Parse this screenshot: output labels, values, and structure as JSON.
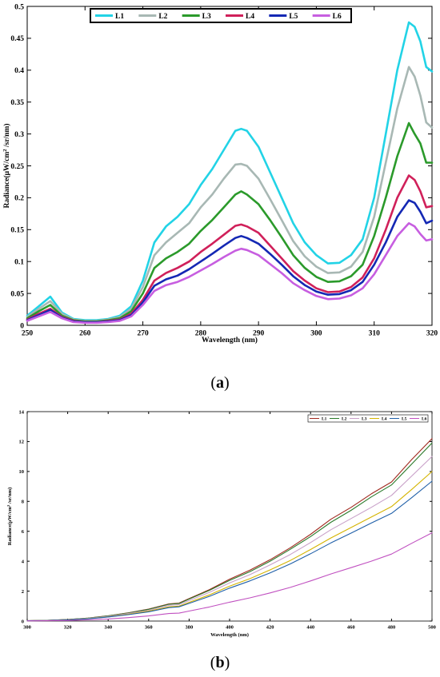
{
  "captions": {
    "a_letter": "a",
    "b_letter": "b"
  },
  "chart_data": [
    {
      "type": "line",
      "id": "a",
      "xlabel": "Wavelength (nm)",
      "ylabel_main": "Radiance(μW/cm",
      "ylabel_sup": "2",
      "ylabel_tail": " /sr/nm)",
      "xlim": [
        250,
        320
      ],
      "ylim": [
        0,
        0.5
      ],
      "xticks": [
        250,
        260,
        270,
        280,
        290,
        300,
        310,
        320
      ],
      "yticks": [
        0,
        0.05,
        0.1,
        0.15,
        0.2,
        0.25,
        0.3,
        0.35,
        0.4,
        0.45,
        0.5
      ],
      "ytick_labels": [
        "0",
        "0.05",
        "0.1",
        "0.15",
        "0.2",
        "0.25",
        "0.3",
        "0.35",
        "0.4",
        "0.45",
        "0.5"
      ],
      "legend_position": "top-center",
      "x": [
        250,
        252,
        254,
        256,
        258,
        260,
        262,
        264,
        266,
        268,
        270,
        272,
        274,
        276,
        278,
        280,
        282,
        284,
        286,
        287,
        288,
        290,
        292,
        294,
        296,
        298,
        300,
        302,
        304,
        306,
        308,
        310,
        312,
        314,
        316,
        317,
        318,
        319,
        320
      ],
      "series": [
        {
          "name": "L1",
          "color": "#22d3e6",
          "values": [
            0.015,
            0.03,
            0.045,
            0.02,
            0.01,
            0.008,
            0.008,
            0.01,
            0.015,
            0.03,
            0.07,
            0.13,
            0.155,
            0.17,
            0.19,
            0.22,
            0.245,
            0.275,
            0.305,
            0.308,
            0.305,
            0.28,
            0.24,
            0.2,
            0.16,
            0.13,
            0.11,
            0.097,
            0.098,
            0.11,
            0.135,
            0.2,
            0.3,
            0.4,
            0.475,
            0.468,
            0.445,
            0.405,
            0.398
          ]
        },
        {
          "name": "L2",
          "color": "#a8b8b4",
          "values": [
            0.013,
            0.026,
            0.038,
            0.018,
            0.009,
            0.007,
            0.007,
            0.009,
            0.013,
            0.026,
            0.06,
            0.11,
            0.13,
            0.145,
            0.16,
            0.185,
            0.205,
            0.23,
            0.252,
            0.253,
            0.25,
            0.23,
            0.198,
            0.165,
            0.132,
            0.108,
            0.092,
            0.082,
            0.083,
            0.092,
            0.115,
            0.17,
            0.255,
            0.34,
            0.405,
            0.39,
            0.36,
            0.318,
            0.31
          ]
        },
        {
          "name": "L3",
          "color": "#2b9a2b",
          "values": [
            0.011,
            0.022,
            0.032,
            0.015,
            0.008,
            0.006,
            0.006,
            0.008,
            0.011,
            0.022,
            0.05,
            0.09,
            0.105,
            0.115,
            0.128,
            0.148,
            0.165,
            0.185,
            0.205,
            0.21,
            0.205,
            0.19,
            0.165,
            0.138,
            0.11,
            0.09,
            0.076,
            0.068,
            0.069,
            0.077,
            0.095,
            0.14,
            0.2,
            0.265,
            0.317,
            0.3,
            0.285,
            0.255,
            0.255
          ]
        },
        {
          "name": "L4",
          "color": "#d0205a",
          "values": [
            0.009,
            0.018,
            0.026,
            0.013,
            0.007,
            0.005,
            0.005,
            0.007,
            0.009,
            0.018,
            0.04,
            0.07,
            0.082,
            0.09,
            0.1,
            0.115,
            0.128,
            0.142,
            0.156,
            0.158,
            0.155,
            0.145,
            0.125,
            0.105,
            0.085,
            0.07,
            0.058,
            0.052,
            0.053,
            0.06,
            0.075,
            0.105,
            0.15,
            0.2,
            0.235,
            0.228,
            0.21,
            0.185,
            0.187
          ]
        },
        {
          "name": "L5",
          "color": "#1428b4",
          "values": [
            0.008,
            0.016,
            0.024,
            0.012,
            0.006,
            0.005,
            0.005,
            0.006,
            0.008,
            0.016,
            0.036,
            0.062,
            0.072,
            0.078,
            0.088,
            0.1,
            0.112,
            0.125,
            0.137,
            0.14,
            0.137,
            0.128,
            0.112,
            0.095,
            0.077,
            0.063,
            0.053,
            0.048,
            0.049,
            0.055,
            0.068,
            0.095,
            0.13,
            0.17,
            0.196,
            0.192,
            0.178,
            0.16,
            0.164
          ]
        },
        {
          "name": "L6",
          "color": "#c75ee0",
          "values": [
            0.007,
            0.014,
            0.021,
            0.011,
            0.005,
            0.004,
            0.004,
            0.005,
            0.007,
            0.014,
            0.032,
            0.054,
            0.063,
            0.068,
            0.076,
            0.086,
            0.096,
            0.107,
            0.117,
            0.12,
            0.118,
            0.11,
            0.096,
            0.082,
            0.066,
            0.055,
            0.046,
            0.041,
            0.042,
            0.047,
            0.058,
            0.08,
            0.11,
            0.14,
            0.16,
            0.155,
            0.143,
            0.133,
            0.135
          ]
        }
      ]
    },
    {
      "type": "line",
      "id": "b",
      "xlabel": "Wavelength (nm)",
      "ylabel_main": "Radiance(μW/cm",
      "ylabel_sup": "2",
      "ylabel_tail": " /sr/nm)",
      "xlim": [
        300,
        500
      ],
      "ylim": [
        0,
        14
      ],
      "xticks": [
        300,
        320,
        340,
        360,
        380,
        400,
        420,
        440,
        460,
        480,
        500
      ],
      "yticks": [
        0,
        2,
        4,
        6,
        8,
        10,
        12,
        14
      ],
      "ytick_labels": [
        "0",
        "2",
        "4",
        "6",
        "8",
        "10",
        "12",
        "14"
      ],
      "legend_position": "top-right",
      "x": [
        300,
        310,
        320,
        330,
        340,
        350,
        360,
        370,
        375,
        380,
        390,
        400,
        410,
        420,
        430,
        440,
        450,
        460,
        470,
        480,
        490,
        500
      ],
      "series": [
        {
          "name": "L1",
          "color": "#a0281e",
          "values": [
            0.02,
            0.05,
            0.1,
            0.2,
            0.35,
            0.55,
            0.8,
            1.15,
            1.2,
            1.5,
            2.1,
            2.8,
            3.4,
            4.1,
            4.9,
            5.8,
            6.8,
            7.6,
            8.5,
            9.3,
            10.8,
            12.2
          ]
        },
        {
          "name": "L2",
          "color": "#2a7a2a",
          "values": [
            0.02,
            0.05,
            0.1,
            0.2,
            0.34,
            0.54,
            0.78,
            1.12,
            1.17,
            1.47,
            2.05,
            2.72,
            3.3,
            4.0,
            4.8,
            5.65,
            6.6,
            7.4,
            8.3,
            9.1,
            10.5,
            11.9
          ]
        },
        {
          "name": "L3",
          "color": "#c8a0c8",
          "values": [
            0.02,
            0.05,
            0.09,
            0.18,
            0.31,
            0.5,
            0.72,
            1.05,
            1.1,
            1.37,
            1.92,
            2.55,
            3.1,
            3.75,
            4.45,
            5.25,
            6.1,
            6.85,
            7.6,
            8.4,
            9.7,
            11.0
          ]
        },
        {
          "name": "L4",
          "color": "#d4b400",
          "values": [
            0.02,
            0.04,
            0.08,
            0.16,
            0.28,
            0.45,
            0.66,
            0.95,
            1.0,
            1.25,
            1.75,
            2.33,
            2.83,
            3.42,
            4.05,
            4.78,
            5.55,
            6.25,
            6.95,
            7.65,
            8.8,
            10.0
          ]
        },
        {
          "name": "L5",
          "color": "#1f5fa8",
          "values": [
            0.02,
            0.04,
            0.08,
            0.15,
            0.27,
            0.43,
            0.62,
            0.9,
            0.95,
            1.18,
            1.65,
            2.2,
            2.68,
            3.22,
            3.82,
            4.5,
            5.22,
            5.88,
            6.55,
            7.2,
            8.25,
            9.35
          ]
        },
        {
          "name": "L6",
          "color": "#c050c0",
          "values": [
            0.01,
            0.02,
            0.04,
            0.08,
            0.14,
            0.23,
            0.34,
            0.5,
            0.53,
            0.67,
            0.94,
            1.26,
            1.55,
            1.88,
            2.25,
            2.68,
            3.15,
            3.57,
            4.0,
            4.48,
            5.2,
            5.9
          ]
        }
      ]
    }
  ]
}
